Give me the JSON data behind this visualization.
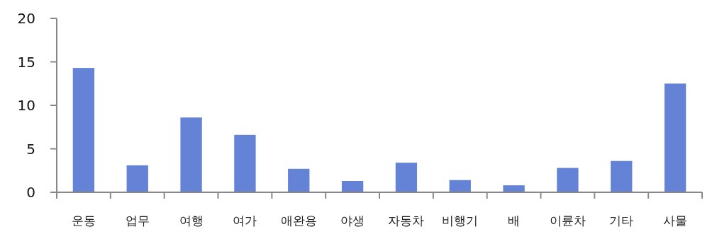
{
  "chart_data": {
    "type": "bar",
    "categories": [
      "운동",
      "업무",
      "여행",
      "여가",
      "애완용",
      "야생",
      "자동차",
      "비행기",
      "배",
      "이륜차",
      "기타",
      "사물"
    ],
    "values": [
      14.3,
      3.1,
      8.6,
      6.6,
      2.7,
      1.3,
      3.4,
      1.4,
      0.8,
      2.8,
      3.6,
      12.5
    ],
    "color": "#6482d6",
    "ylim": [
      0,
      20
    ],
    "yticks": [
      0,
      5,
      10,
      15,
      20
    ],
    "grid": false
  }
}
